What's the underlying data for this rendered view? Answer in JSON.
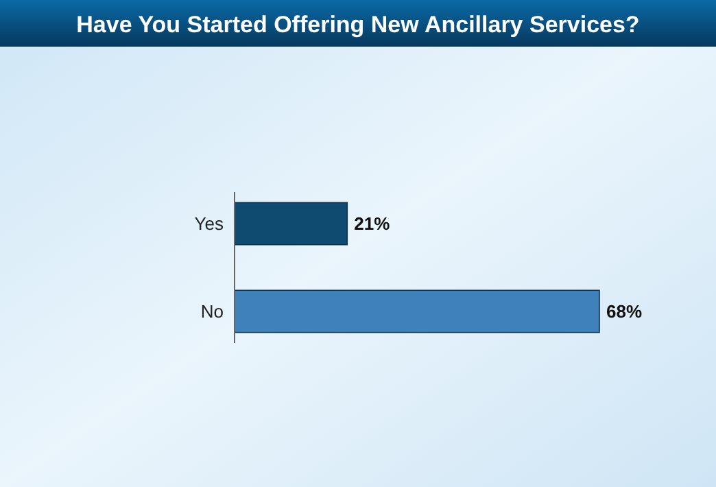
{
  "chart_data": {
    "type": "bar",
    "orientation": "horizontal",
    "title": "Have You Started Offering New Ancillary Services?",
    "categories": [
      "Yes",
      "No"
    ],
    "values": [
      21,
      68
    ],
    "value_labels": [
      "21%",
      "68%"
    ],
    "colors": [
      "#0f4a70",
      "#3f82bb"
    ]
  }
}
